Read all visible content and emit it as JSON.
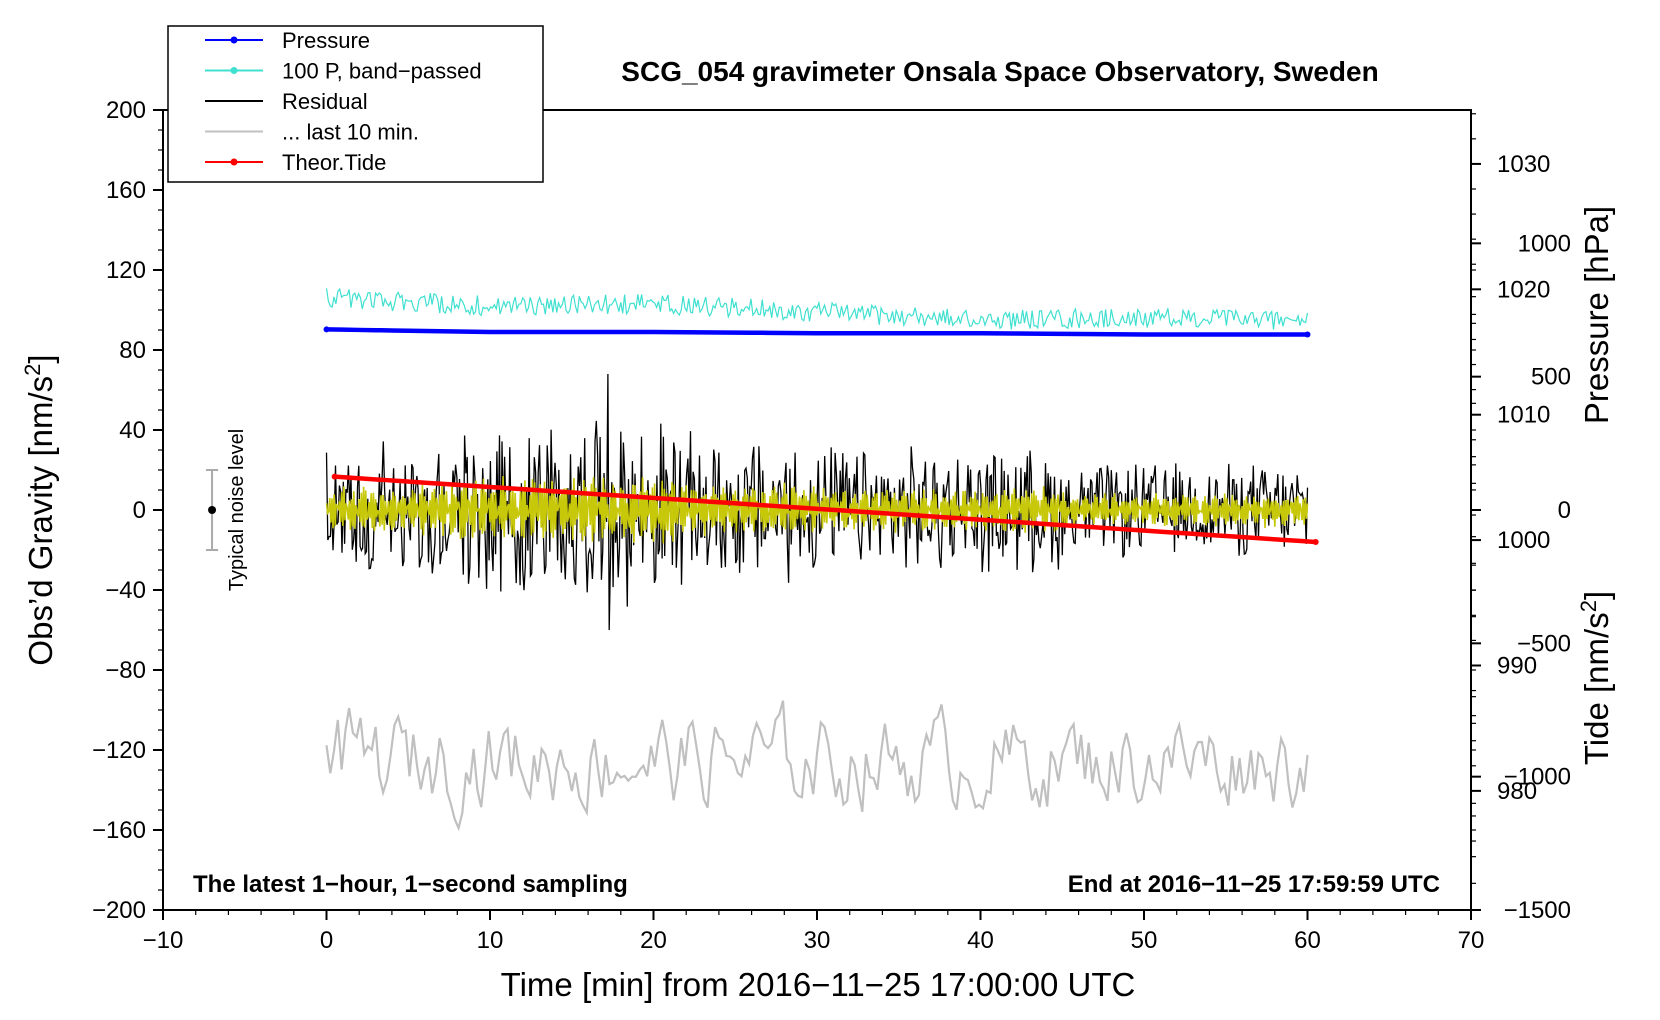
{
  "chart_data": {
    "type": "line",
    "title": "SCG_054 gravimeter Onsala Space Observatory, Sweden",
    "xlabel": "Time [min] from 2016−11−25 17:00:00 UTC",
    "ylabel_left_prefix": "Obs’d Gravity [nm/s",
    "ylabel_left_sup": "2",
    "ylabel_left_suffix": "]",
    "ylabel_pressure": "Pressure [hPa]",
    "ylabel_tide_prefix": "Tide [nm/s",
    "ylabel_tide_sup": "2",
    "ylabel_tide_suffix": "]",
    "xlim": [
      -10,
      70
    ],
    "ylim": [
      -200,
      200
    ],
    "pressure_lim": [
      1034.3,
      970.5
    ],
    "tide_lim": [
      -1500,
      1500
    ],
    "x_ticks": [
      -10,
      0,
      10,
      20,
      30,
      40,
      50,
      60,
      70
    ],
    "x_tick_labels": [
      "−10",
      "0",
      "10",
      "20",
      "30",
      "40",
      "50",
      "60",
      "70"
    ],
    "y_ticks": [
      200,
      160,
      120,
      80,
      40,
      0,
      -40,
      -80,
      -120,
      -160,
      -200
    ],
    "y_tick_labels": [
      "200",
      "160",
      "120",
      "80",
      "40",
      "0",
      "−40",
      "−80",
      "−120",
      "−160",
      "−200"
    ],
    "pressure_ticks": [
      1030,
      1020,
      1010,
      1000,
      990,
      980
    ],
    "pressure_tick_labels": [
      "1030",
      "1020",
      "1010",
      "1000",
      "990",
      "980"
    ],
    "tide_ticks": [
      1000,
      500,
      0,
      -500,
      -1000,
      -1500
    ],
    "tide_tick_labels": [
      "1000",
      "500",
      "0",
      "−500",
      "−1000",
      "−1500"
    ],
    "annotation_left": "The latest 1−hour, 1−second sampling",
    "annotation_right": "End at 2016−11−25 17:59:59 UTC",
    "noise_label": "Typical noise level",
    "noise_bar": {
      "x": -7,
      "center": 0,
      "halfwidth": 20
    },
    "legend": [
      {
        "name": "Pressure",
        "color": "#0000ff",
        "marker": true
      },
      {
        "name": "100 P, band−passed",
        "color": "#40e0d0",
        "marker": true
      },
      {
        "name": "Residual",
        "color": "#000000",
        "marker": false
      },
      {
        "name": "... last 10 min.",
        "color": "#c0c0c0",
        "marker": false
      },
      {
        "name": "Theor.Tide",
        "color": "#ff0000",
        "marker": true
      }
    ],
    "series": [
      {
        "name": "Pressure",
        "axis": "pressure",
        "color": "#0000ff",
        "x": [
          0,
          10,
          20,
          30,
          40,
          50,
          60
        ],
        "values": [
          1016.8,
          1016.6,
          1016.6,
          1016.5,
          1016.5,
          1016.4,
          1016.4
        ]
      },
      {
        "name": "100 P, band−passed",
        "axis": "left",
        "color": "#40e0d0",
        "x": [
          0,
          10,
          20,
          30,
          40,
          50,
          60
        ],
        "values": [
          106,
          102,
          103,
          99,
          95,
          96,
          95
        ],
        "noise_amplitude": 5
      },
      {
        "name": "Residual",
        "axis": "left",
        "color": "#000000",
        "x": [
          0,
          60
        ],
        "values": [
          0,
          0
        ],
        "noise_amplitude": 40,
        "extremes": [
          [
            17.2,
            68
          ],
          [
            17.3,
            -60
          ]
        ]
      },
      {
        "name": "Residual (smoothed)",
        "axis": "left",
        "color": "#c8c80a",
        "x": [
          0,
          60
        ],
        "values": [
          0,
          0
        ],
        "noise_amplitude": 14
      },
      {
        "name": "Theor.Tide",
        "axis": "tide",
        "color": "#ff0000",
        "x": [
          0.5,
          60.5
        ],
        "values": [
          125,
          -120
        ]
      },
      {
        "name": "... last 10 min.",
        "axis": "left",
        "color": "#c0c0c0",
        "x": [
          0,
          60
        ],
        "values": [
          -125,
          -125
        ],
        "noise_amplitude": 18
      }
    ]
  }
}
